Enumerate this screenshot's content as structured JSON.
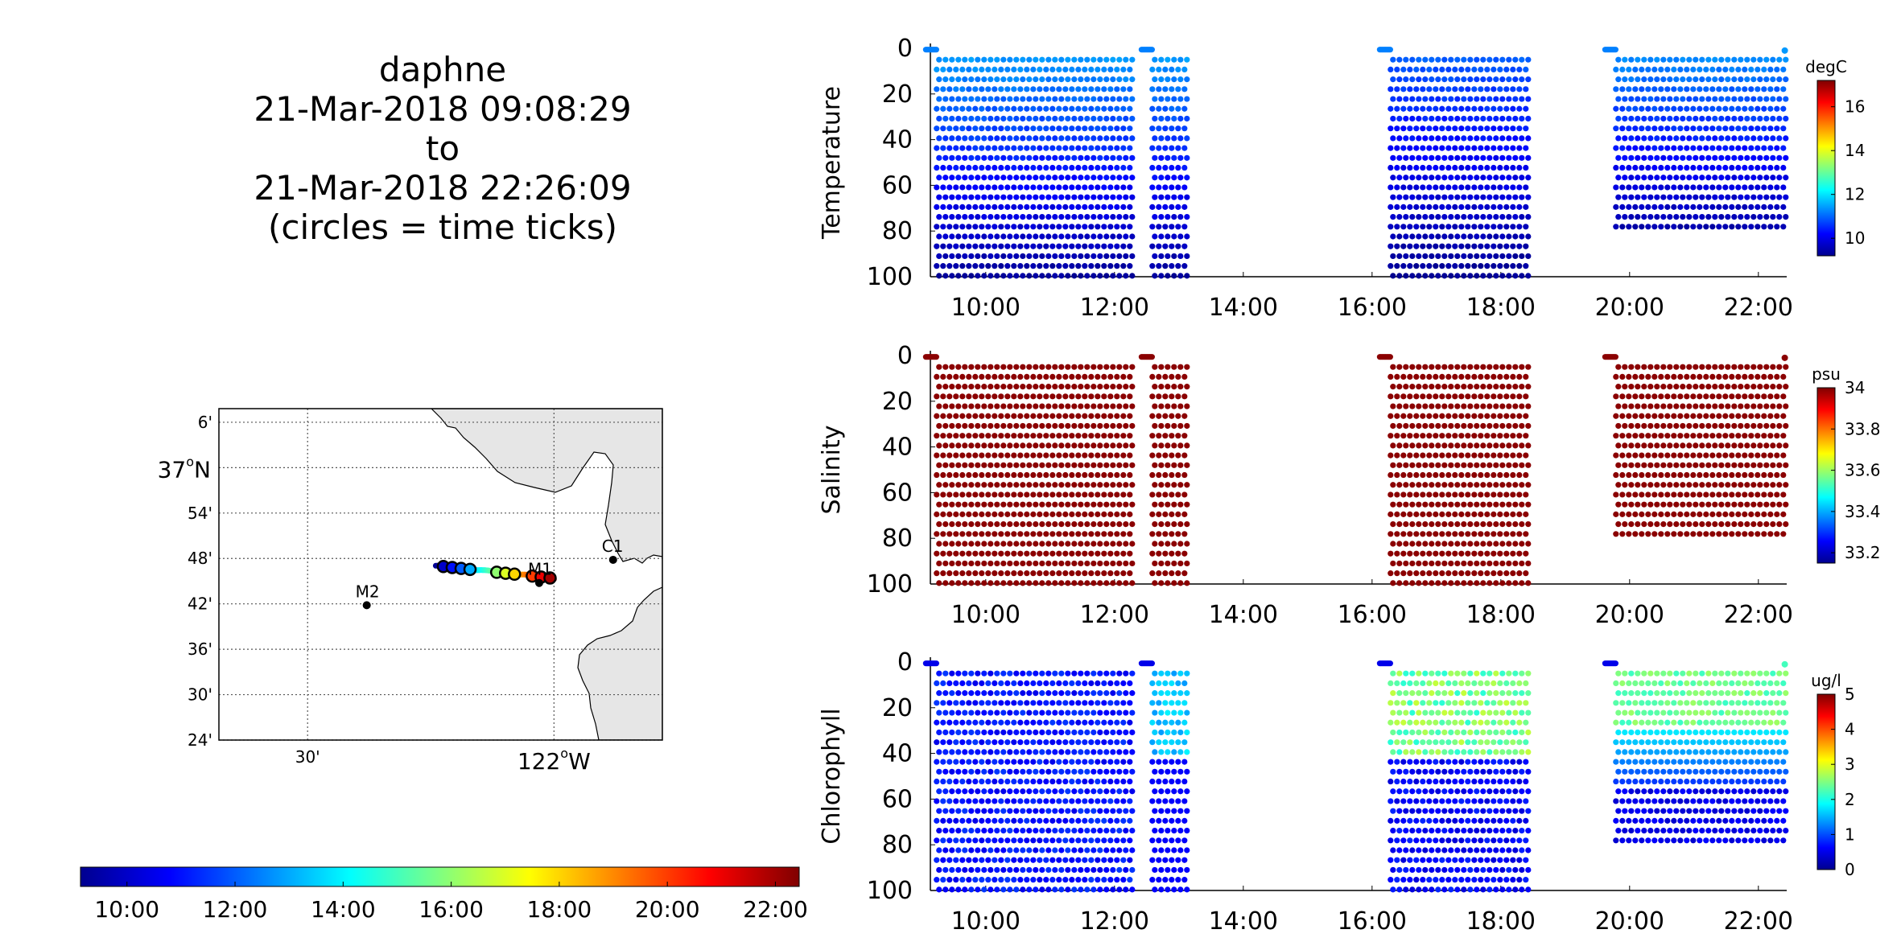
{
  "title": {
    "vehicle": "daphne",
    "start": "21-Mar-2018 09:08:29",
    "to": "to",
    "end": "21-Mar-2018 22:26:09",
    "note": "(circles = time ticks)"
  },
  "colors": {
    "jet": [
      "#00008f",
      "#0000ff",
      "#0080ff",
      "#00ffff",
      "#80ff80",
      "#ffff00",
      "#ff8000",
      "#ff0000",
      "#800000"
    ],
    "land": "#e6e6e6",
    "salinity_points": "#8b0000"
  },
  "chart_data": [
    {
      "type": "map",
      "lat_labels": [
        "6'",
        "37°N",
        "54'",
        "48'",
        "42'",
        "36'",
        "30'",
        "24'"
      ],
      "lat_values": [
        37.1,
        37.0,
        36.9,
        36.8,
        36.7,
        36.6,
        36.5,
        36.4
      ],
      "lon_labels": [
        "30'",
        "122°W"
      ],
      "lon_values": [
        -122.5,
        -122.0
      ],
      "xlim": [
        -122.68,
        -121.78
      ],
      "ylim": [
        36.4,
        37.13
      ],
      "grid": true,
      "stations": [
        {
          "name": "C1",
          "lon": -121.88,
          "lat": 36.797
        },
        {
          "name": "M2",
          "lon": -122.38,
          "lat": 36.697
        },
        {
          "name": "M1",
          "lon": -122.03,
          "lat": 36.746
        }
      ],
      "track_start_lon": -122.24,
      "track_end_lon": -122.0,
      "track_start_lat": 36.784,
      "track_end_lat": 36.756,
      "time_tick_hours": [
        10,
        11,
        12,
        13,
        16,
        17,
        18,
        20,
        21,
        22
      ]
    },
    {
      "type": "colorbar",
      "orientation": "horizontal",
      "tick_labels": [
        "10:00",
        "12:00",
        "14:00",
        "16:00",
        "18:00",
        "20:00",
        "22:00"
      ],
      "tick_hours": [
        10,
        12,
        14,
        16,
        18,
        20,
        22
      ],
      "range_hours": [
        9.14,
        22.44
      ]
    },
    {
      "type": "scatter",
      "ylabel": "Temperature",
      "units": "degC",
      "colorbar_ticks": [
        "16",
        "14",
        "12",
        "10"
      ],
      "colorbar_values": [
        16,
        14,
        12,
        10
      ],
      "clim": [
        9.2,
        17.2
      ],
      "y_ticks": [
        "0",
        "20",
        "40",
        "60",
        "80",
        "100"
      ],
      "ylim": [
        100,
        0
      ],
      "x_ticks": [
        "10:00",
        "12:00",
        "14:00",
        "16:00",
        "18:00",
        "20:00",
        "22:00"
      ],
      "xlim_hours": [
        9.14,
        22.44
      ],
      "segments": [
        [
          9.25,
          12.25,
          100
        ],
        [
          12.6,
          13.1,
          100
        ],
        [
          16.3,
          18.4,
          100
        ],
        [
          19.8,
          22.4,
          80
        ]
      ],
      "surface_low": 11.4,
      "surface_high": 11.0,
      "deep": 10.0
    },
    {
      "type": "scatter",
      "ylabel": "Salinity",
      "units": "psu",
      "colorbar_ticks": [
        "34",
        "33.8",
        "33.6",
        "33.4",
        "33.2"
      ],
      "colorbar_values": [
        34,
        33.8,
        33.6,
        33.4,
        33.2
      ],
      "clim": [
        33.15,
        34.0
      ],
      "y_ticks": [
        "0",
        "20",
        "40",
        "60",
        "80",
        "100"
      ],
      "ylim": [
        100,
        0
      ],
      "x_ticks": [
        "10:00",
        "12:00",
        "14:00",
        "16:00",
        "18:00",
        "20:00",
        "22:00"
      ],
      "xlim_hours": [
        9.14,
        22.44
      ],
      "segments": [
        [
          9.25,
          12.25,
          100
        ],
        [
          12.6,
          13.1,
          100
        ],
        [
          16.3,
          18.4,
          100
        ],
        [
          19.8,
          22.4,
          80
        ]
      ]
    },
    {
      "type": "scatter",
      "ylabel": "Chlorophyll",
      "units": "ug/l",
      "colorbar_ticks": [
        "5",
        "4",
        "3",
        "2",
        "1",
        "0"
      ],
      "colorbar_values": [
        5,
        4,
        3,
        2,
        1,
        0
      ],
      "clim": [
        0,
        5
      ],
      "y_ticks": [
        "0",
        "20",
        "40",
        "60",
        "80",
        "100"
      ],
      "ylim": [
        100,
        0
      ],
      "x_ticks": [
        "10:00",
        "12:00",
        "14:00",
        "16:00",
        "18:00",
        "20:00",
        "22:00"
      ],
      "xlim_hours": [
        9.14,
        22.44
      ],
      "segments": [
        [
          9.25,
          12.25,
          100
        ],
        [
          12.6,
          13.1,
          100
        ],
        [
          16.3,
          18.4,
          100
        ],
        [
          19.8,
          22.4,
          80
        ]
      ]
    }
  ]
}
